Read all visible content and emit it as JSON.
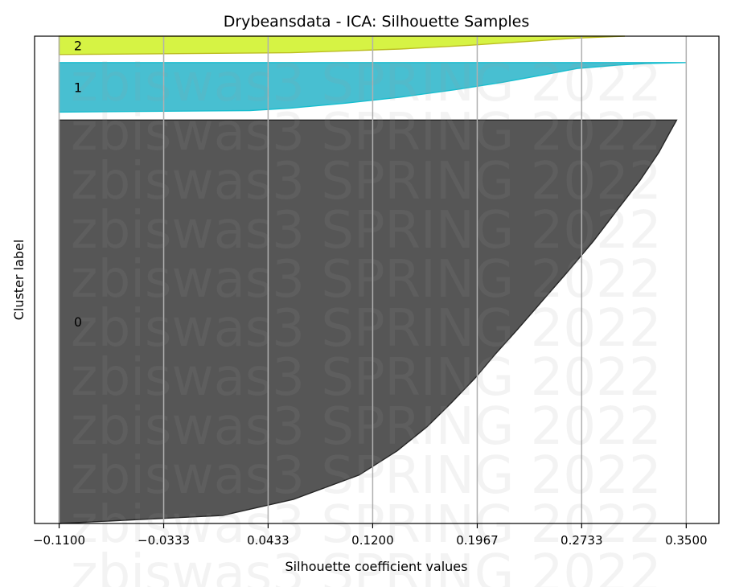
{
  "chart_data": {
    "type": "area",
    "title": "Drybeansdata - ICA: Silhouette Samples",
    "xlabel": "Silhouette coefficient values",
    "ylabel": "Cluster label",
    "xlim": [
      -0.128,
      0.374
    ],
    "x_ticks": [
      -0.11,
      -0.0333,
      0.0433,
      0.12,
      0.1967,
      0.2733,
      0.35
    ],
    "x_tick_labels": [
      "−0.1100",
      "−0.0333",
      "0.0433",
      "0.1200",
      "0.1967",
      "0.2733",
      "0.3500"
    ],
    "grid": "vertical",
    "watermark": "zbiswas3 SPRING 2022",
    "series": [
      {
        "name": "0",
        "color": "#4d4d4d",
        "outline": "#262626",
        "samples": 505,
        "profile_fraction": [
          0,
          0.03,
          0.08,
          0.15,
          0.22,
          0.3,
          0.38,
          0.45,
          0.52,
          0.58,
          0.64,
          0.7,
          0.76,
          0.82,
          0.88,
          0.94,
          0.98,
          1.0
        ],
        "profile_value": [
          0.343,
          0.338,
          0.33,
          0.316,
          0.3,
          0.282,
          0.262,
          0.244,
          0.226,
          0.21,
          0.195,
          0.178,
          0.16,
          0.138,
          0.11,
          0.062,
          0.01,
          -0.11
        ]
      },
      {
        "name": "1",
        "color": "#3ebccf",
        "outline": "#17becf",
        "samples": 62,
        "profile_fraction": [
          0,
          0.02,
          0.05,
          0.12,
          0.25,
          0.4,
          0.55,
          0.7,
          0.82,
          0.92,
          0.97,
          1.0
        ],
        "profile_value": [
          0.35,
          0.32,
          0.3,
          0.27,
          0.245,
          0.215,
          0.18,
          0.14,
          0.1,
          0.06,
          0.03,
          -0.11
        ]
      },
      {
        "name": "2",
        "color": "#d4f23a",
        "outline": "#bcbd22",
        "samples": 23,
        "profile_fraction": [
          0,
          0.1,
          0.3,
          0.5,
          0.7,
          0.9,
          1.0
        ],
        "profile_value": [
          0.305,
          0.27,
          0.23,
          0.19,
          0.14,
          0.06,
          -0.11
        ]
      }
    ]
  }
}
